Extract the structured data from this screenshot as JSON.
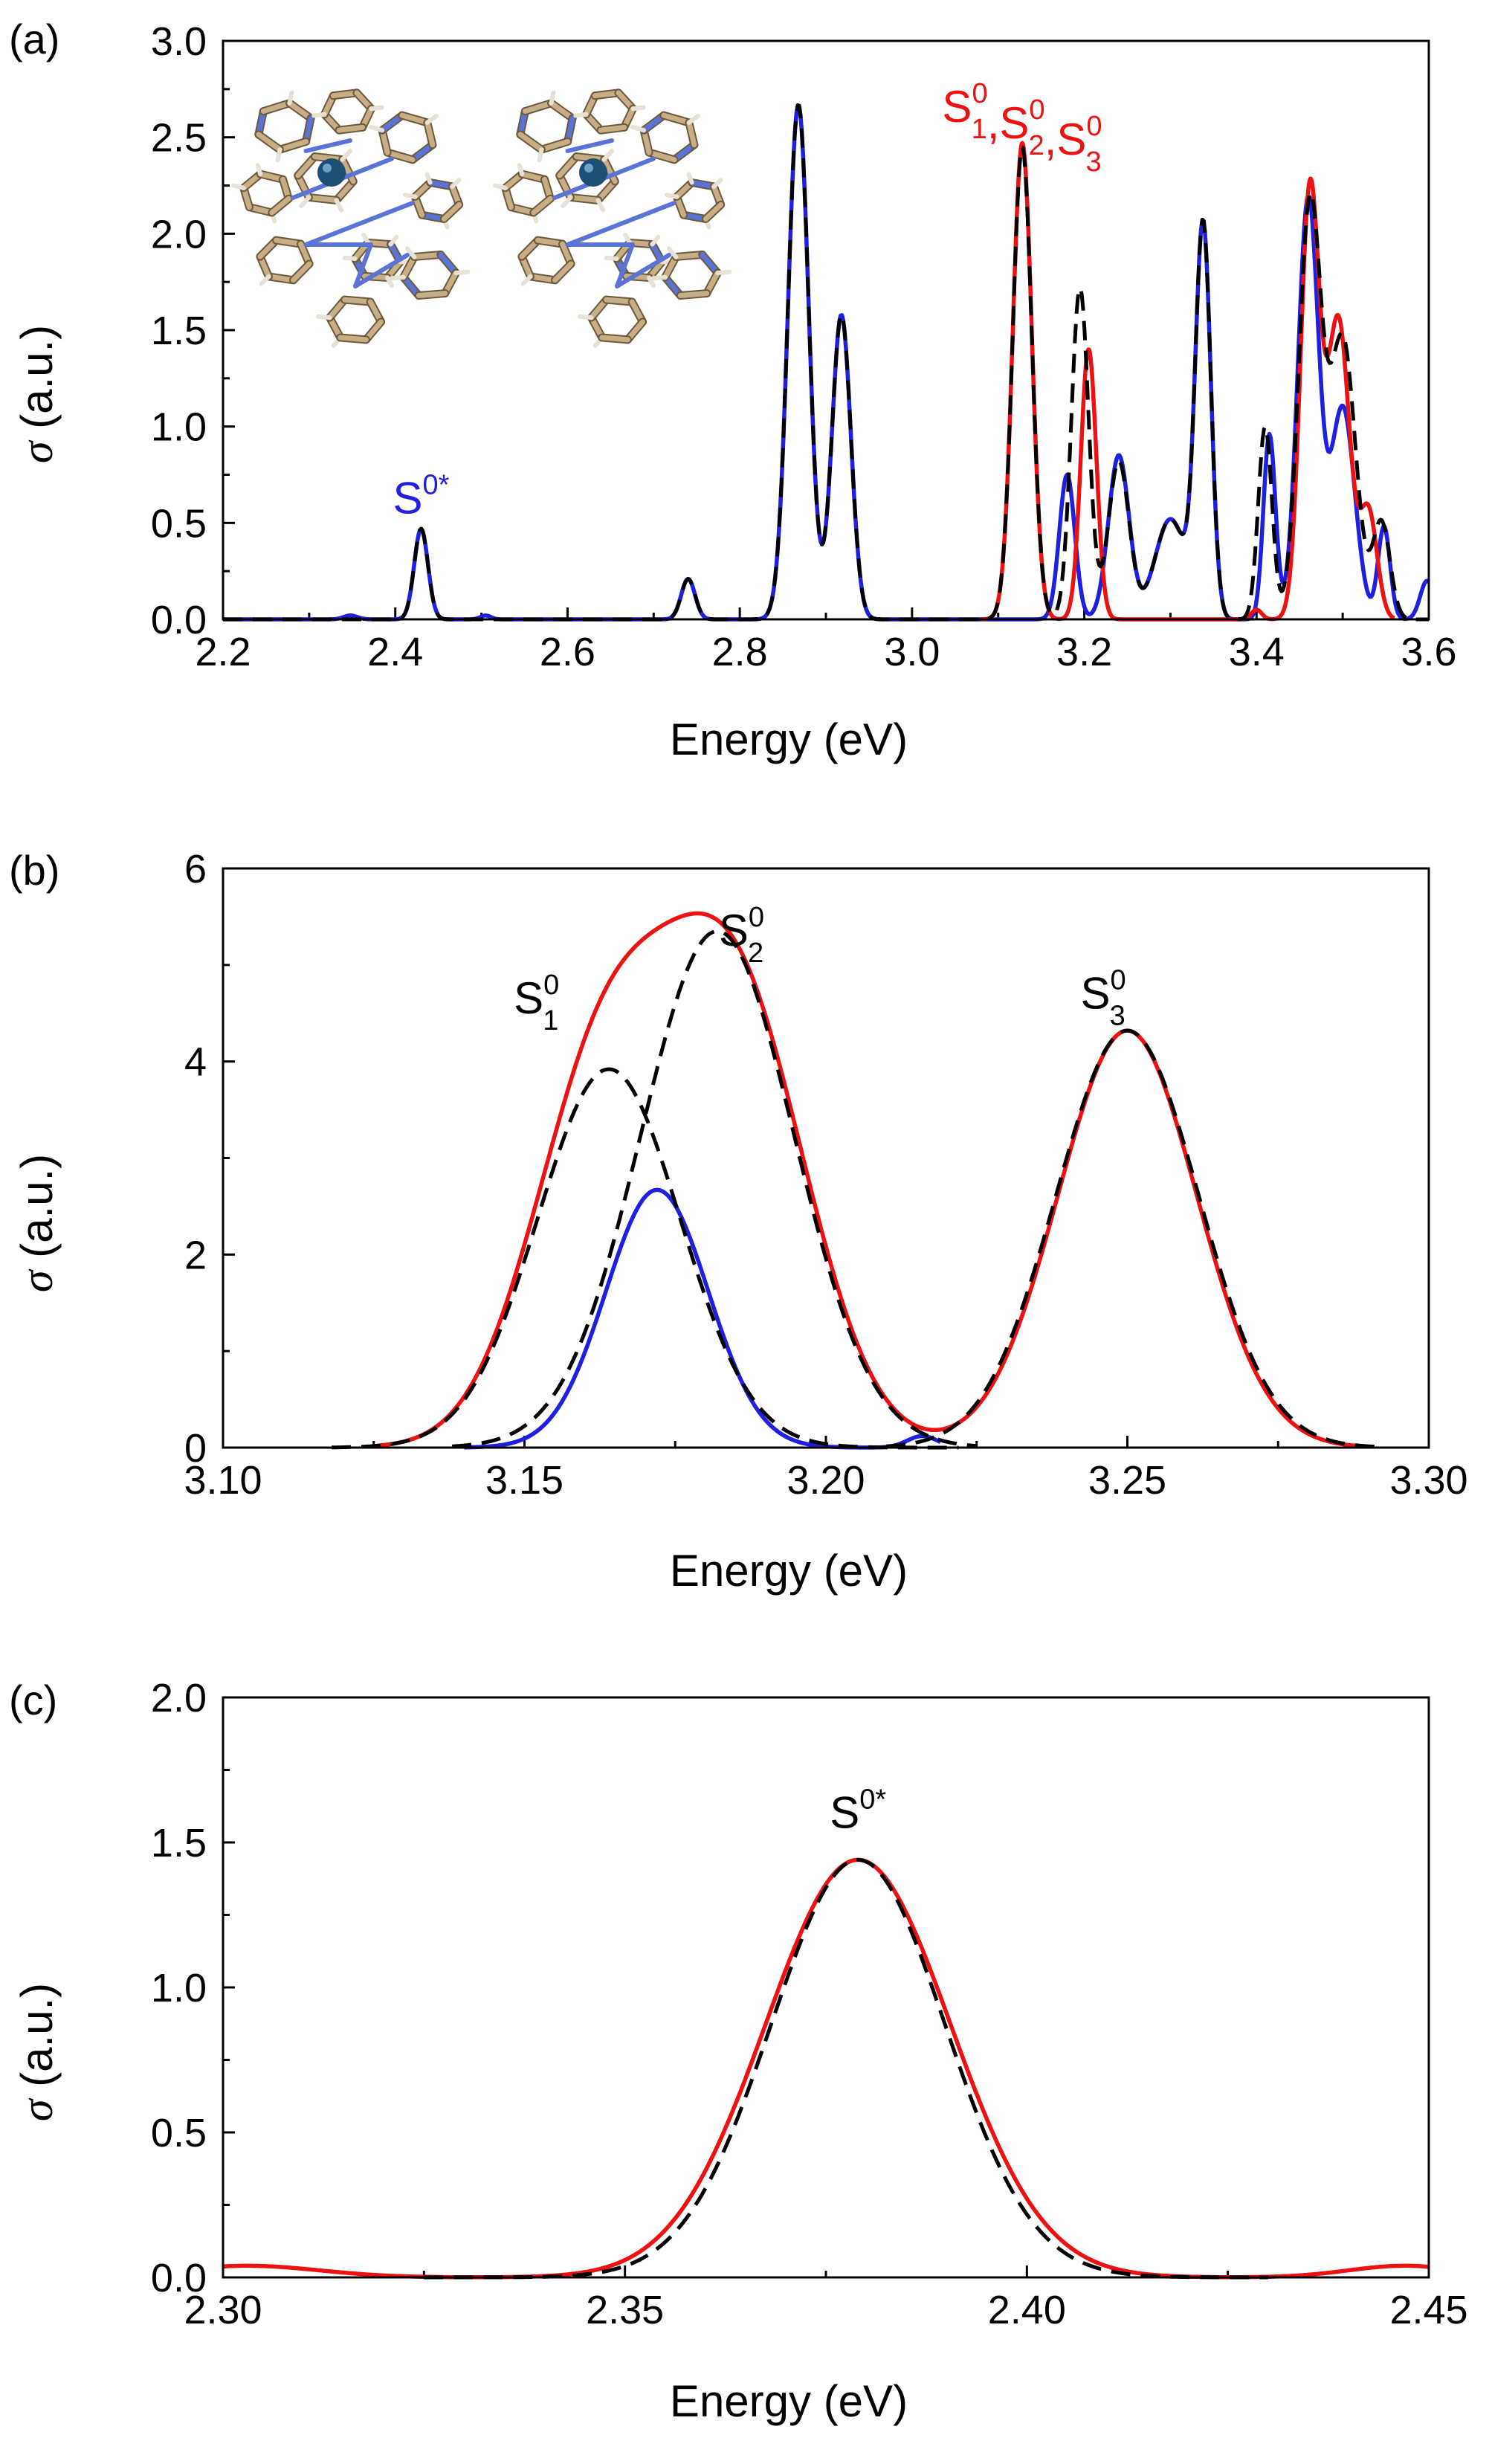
{
  "colors": {
    "blue": "#1f1fe0",
    "red": "#ee1111",
    "black_dashed": "#000000",
    "atom_dark": "#1d4f73",
    "carbon": "#c9ad84",
    "nitrogen": "#5a73d6",
    "hydrogen": "#e8e2d6"
  },
  "chart_data": [
    {
      "type": "line",
      "panel_label": "(a)",
      "xlabel": "Energy (eV)",
      "ylabel_symbol": "σ",
      "ylabel_unit": "(a.u.)",
      "xlim": [
        2.2,
        3.6
      ],
      "ylim": [
        0,
        3.0
      ],
      "xticks": [
        2.2,
        2.4,
        2.6,
        2.8,
        3.0,
        3.2,
        3.4,
        3.6
      ],
      "xtick_labels": [
        "2.2",
        "2.4",
        "2.6",
        "2.8",
        "3.0",
        "3.2",
        "3.4",
        "3.6"
      ],
      "yticks": [
        0,
        0.5,
        1.0,
        1.5,
        2.0,
        2.5,
        3.0
      ],
      "ytick_labels": [
        "0.0",
        "0.5",
        "1.0",
        "1.5",
        "2.0",
        "2.5",
        "3.0"
      ],
      "series": [
        {
          "name": "blue",
          "style": "solid",
          "color": "#1f1fe0",
          "xrange": [
            2.2,
            3.6
          ],
          "peaks": [
            [
              2.348,
              0.02,
              0.008
            ],
            [
              2.43,
              0.47,
              0.008
            ],
            [
              2.505,
              0.02,
              0.006
            ],
            [
              2.74,
              0.21,
              0.008
            ],
            [
              2.868,
              2.67,
              0.012
            ],
            [
              2.918,
              1.58,
              0.011
            ],
            [
              3.18,
              0.75,
              0.009
            ],
            [
              3.24,
              0.85,
              0.012
            ],
            [
              3.3,
              0.52,
              0.018
            ],
            [
              3.338,
              2.02,
              0.009
            ],
            [
              3.415,
              0.96,
              0.007
            ],
            [
              3.46,
              2.18,
              0.012
            ],
            [
              3.5,
              1.1,
              0.014
            ],
            [
              3.548,
              0.48,
              0.007
            ],
            [
              3.598,
              0.2,
              0.008
            ]
          ]
        },
        {
          "name": "red",
          "style": "solid",
          "color": "#ee1111",
          "xrange": [
            3.08,
            3.56
          ],
          "peaks": [
            [
              3.128,
              2.47,
              0.011
            ],
            [
              3.205,
              1.4,
              0.009
            ],
            [
              3.4,
              0.05,
              0.006
            ],
            [
              3.462,
              2.22,
              0.011
            ],
            [
              3.495,
              1.55,
              0.013
            ],
            [
              3.53,
              0.55,
              0.01
            ]
          ]
        },
        {
          "name": "black-dashed",
          "style": "dashed",
          "color": "#000000",
          "xrange": [
            2.2,
            3.6
          ],
          "peaks": [
            [
              2.43,
              0.47,
              0.008
            ],
            [
              2.74,
              0.21,
              0.008
            ],
            [
              2.868,
              2.67,
              0.012
            ],
            [
              2.918,
              1.58,
              0.011
            ],
            [
              3.128,
              2.45,
              0.011
            ],
            [
              3.195,
              1.72,
              0.01
            ],
            [
              3.24,
              0.82,
              0.012
            ],
            [
              3.3,
              0.52,
              0.018
            ],
            [
              3.338,
              2.02,
              0.009
            ],
            [
              3.41,
              1.0,
              0.008
            ],
            [
              3.462,
              2.15,
              0.013
            ],
            [
              3.5,
              1.45,
              0.015
            ],
            [
              3.545,
              0.5,
              0.01
            ]
          ]
        }
      ],
      "annotations": [
        {
          "text": "S",
          "sup": "0*",
          "color": "#1f1fe0",
          "anchor_x": 2.43,
          "anchor_y": 0.55
        },
        {
          "parts": [
            {
              "text": "S",
              "sup": "0",
              "sub": "1"
            },
            {
              "text": ",S",
              "sup": "0",
              "sub": "2"
            },
            {
              "text": ",S",
              "sup": "0",
              "sub": "3"
            }
          ],
          "color": "#ee1111",
          "anchor_x": 3.035,
          "anchor_y": 2.58
        }
      ]
    },
    {
      "type": "line",
      "panel_label": "(b)",
      "xlabel": "Energy (eV)",
      "ylabel_symbol": "σ",
      "ylabel_unit": "(a.u.)",
      "xlim": [
        3.1,
        3.3
      ],
      "ylim": [
        0,
        6
      ],
      "xticks": [
        3.1,
        3.15,
        3.2,
        3.25,
        3.3
      ],
      "xtick_labels": [
        "3.10",
        "3.15",
        "3.20",
        "3.25",
        "3.30"
      ],
      "yticks": [
        0,
        2,
        4,
        6
      ],
      "ytick_labels": [
        "0",
        "2",
        "4",
        "6"
      ],
      "series": [
        {
          "name": "red-total",
          "style": "solid",
          "color": "#ee1111",
          "xrange": [
            3.125,
            3.29
          ],
          "peaks": [
            [
              3.163,
              3.88,
              0.0115
            ],
            [
              3.185,
              4.62,
              0.0118
            ],
            [
              3.25,
              4.32,
              0.0115
            ]
          ]
        },
        {
          "name": "blue-component",
          "style": "solid",
          "color": "#1f1fe0",
          "xrange": [
            3.14,
            3.219
          ],
          "peaks": [
            [
              3.172,
              2.67,
              0.0085
            ],
            [
              3.216,
              0.12,
              0.0025
            ]
          ]
        },
        {
          "name": "dashed-S1",
          "style": "dashed",
          "color": "#000000",
          "xrange": [
            3.118,
            3.222
          ],
          "peaks": [
            [
              3.164,
              3.92,
              0.0118
            ]
          ]
        },
        {
          "name": "dashed-S2",
          "style": "dashed",
          "color": "#000000",
          "xrange": [
            3.138,
            3.225
          ],
          "peaks": [
            [
              3.182,
              5.35,
              0.0127
            ]
          ]
        },
        {
          "name": "dashed-S3",
          "style": "dashed",
          "color": "#000000",
          "xrange": [
            3.21,
            3.292
          ],
          "peaks": [
            [
              3.25,
              4.32,
              0.0118
            ]
          ]
        }
      ],
      "annotations": [
        {
          "text": "S",
          "sup": "0",
          "sub": "1",
          "color": "#000000",
          "anchor_x": 3.152,
          "anchor_y": 4.5
        },
        {
          "text": "S",
          "sup": "0",
          "sub": "2",
          "color": "#000000",
          "anchor_x": 3.186,
          "anchor_y": 5.2
        },
        {
          "text": "S",
          "sup": "0",
          "sub": "3",
          "color": "#000000",
          "anchor_x": 3.246,
          "anchor_y": 4.55
        }
      ]
    },
    {
      "type": "line",
      "panel_label": "(c)",
      "xlabel": "Energy (eV)",
      "ylabel_symbol": "σ",
      "ylabel_unit": "(a.u.)",
      "xlim": [
        2.3,
        2.45
      ],
      "ylim": [
        0,
        2.0
      ],
      "xticks": [
        2.3,
        2.35,
        2.4,
        2.45
      ],
      "xtick_labels": [
        "2.30",
        "2.35",
        "2.40",
        "2.45"
      ],
      "yticks": [
        0,
        0.5,
        1.0,
        1.5,
        2.0
      ],
      "ytick_labels": [
        "0.0",
        "0.5",
        "1.0",
        "1.5",
        "2.0"
      ],
      "series": [
        {
          "name": "red",
          "style": "solid",
          "color": "#ee1111",
          "xrange": [
            2.3,
            2.45
          ],
          "peaks": [
            [
              2.379,
              1.44,
              0.0115
            ],
            [
              2.303,
              0.04,
              0.009
            ],
            [
              2.447,
              0.04,
              0.007
            ]
          ]
        },
        {
          "name": "black-dashed",
          "style": "dashed",
          "color": "#000000",
          "xrange": [
            2.325,
            2.43
          ],
          "peaks": [
            [
              2.379,
              1.44,
              0.0108
            ]
          ]
        }
      ],
      "annotations": [
        {
          "text": "S",
          "sup": "0*",
          "color": "#000000",
          "anchor_x": 2.379,
          "anchor_y": 1.55
        }
      ]
    }
  ]
}
